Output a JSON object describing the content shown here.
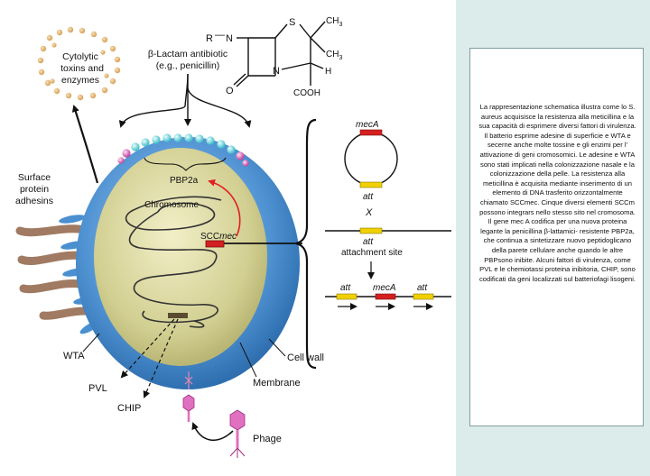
{
  "labels": {
    "cytolytic": [
      "Cytolytic",
      "toxins and",
      "enzymes"
    ],
    "beta_lactam": [
      "β-Lactam antibiotic",
      "(e.g., penicillin)"
    ],
    "surface_adhesins": [
      "Surface",
      "protein",
      "adhesins"
    ],
    "pbp2a": "PBP2a",
    "chromosome": "Chromosome",
    "scc_prefix": "SCC",
    "scc_suffix": "mec",
    "wta": "WTA",
    "pvl": "PVL",
    "chip": "CHIP",
    "cell_wall": "Cell wall",
    "membrane": "Membrane",
    "phage": "Phage",
    "meca": "mecA",
    "att": "att",
    "x": "X",
    "attachment_site": "attachment site"
  },
  "penicillin": {
    "r": "R",
    "s": "S",
    "ch3_top": "CH",
    "ch3_mid": "CH",
    "sub3": "3",
    "h": "H",
    "n": "N",
    "o": "O",
    "cooh": "COOH"
  },
  "colors": {
    "cell_wall": "#4a90d0",
    "cytoplasm": "#d4d29a",
    "meca_gene": "#d42020",
    "att_site": "#f0d000",
    "phage": "#e070c0",
    "arrow_red": "#e02020"
  },
  "caption": "La rappresentazione schematica illustra come lo S. aureus acquisisce la resistenza alla meticillina e la sua capacità di esprimere diversi fattori di virulenza. Il batterio esprime adesine di superficie e WTA e secerne anche molte tossine e gli enzimi per l' attivazione di geni cromosomici. Le adesine e WTA sono stati implicati nella colonizzazione nasale e la colonizzazione della pelle. La resistenza alla meticillina è acquisita mediante inserimento di un elemento di DNA trasferito orizzontalmente chiamato SCCmec. Cinque diversi elementi SCCm possono integrars nello stesso sito nel cromosoma. Il gene mec A codifica per una nuova proteina legante la penicillina β-lattamici- resistente PBP2a, che continua a sintetizzare nuovo peptidoglicano della parete cellulare anche quando le altre PBPsono inibite. Alcuni fattori di virulenza, come PVL e le chemiotassi proteina inibitoria, CHIP, sono codificati da geni localizzati sul batteriofagi lisogeni."
}
